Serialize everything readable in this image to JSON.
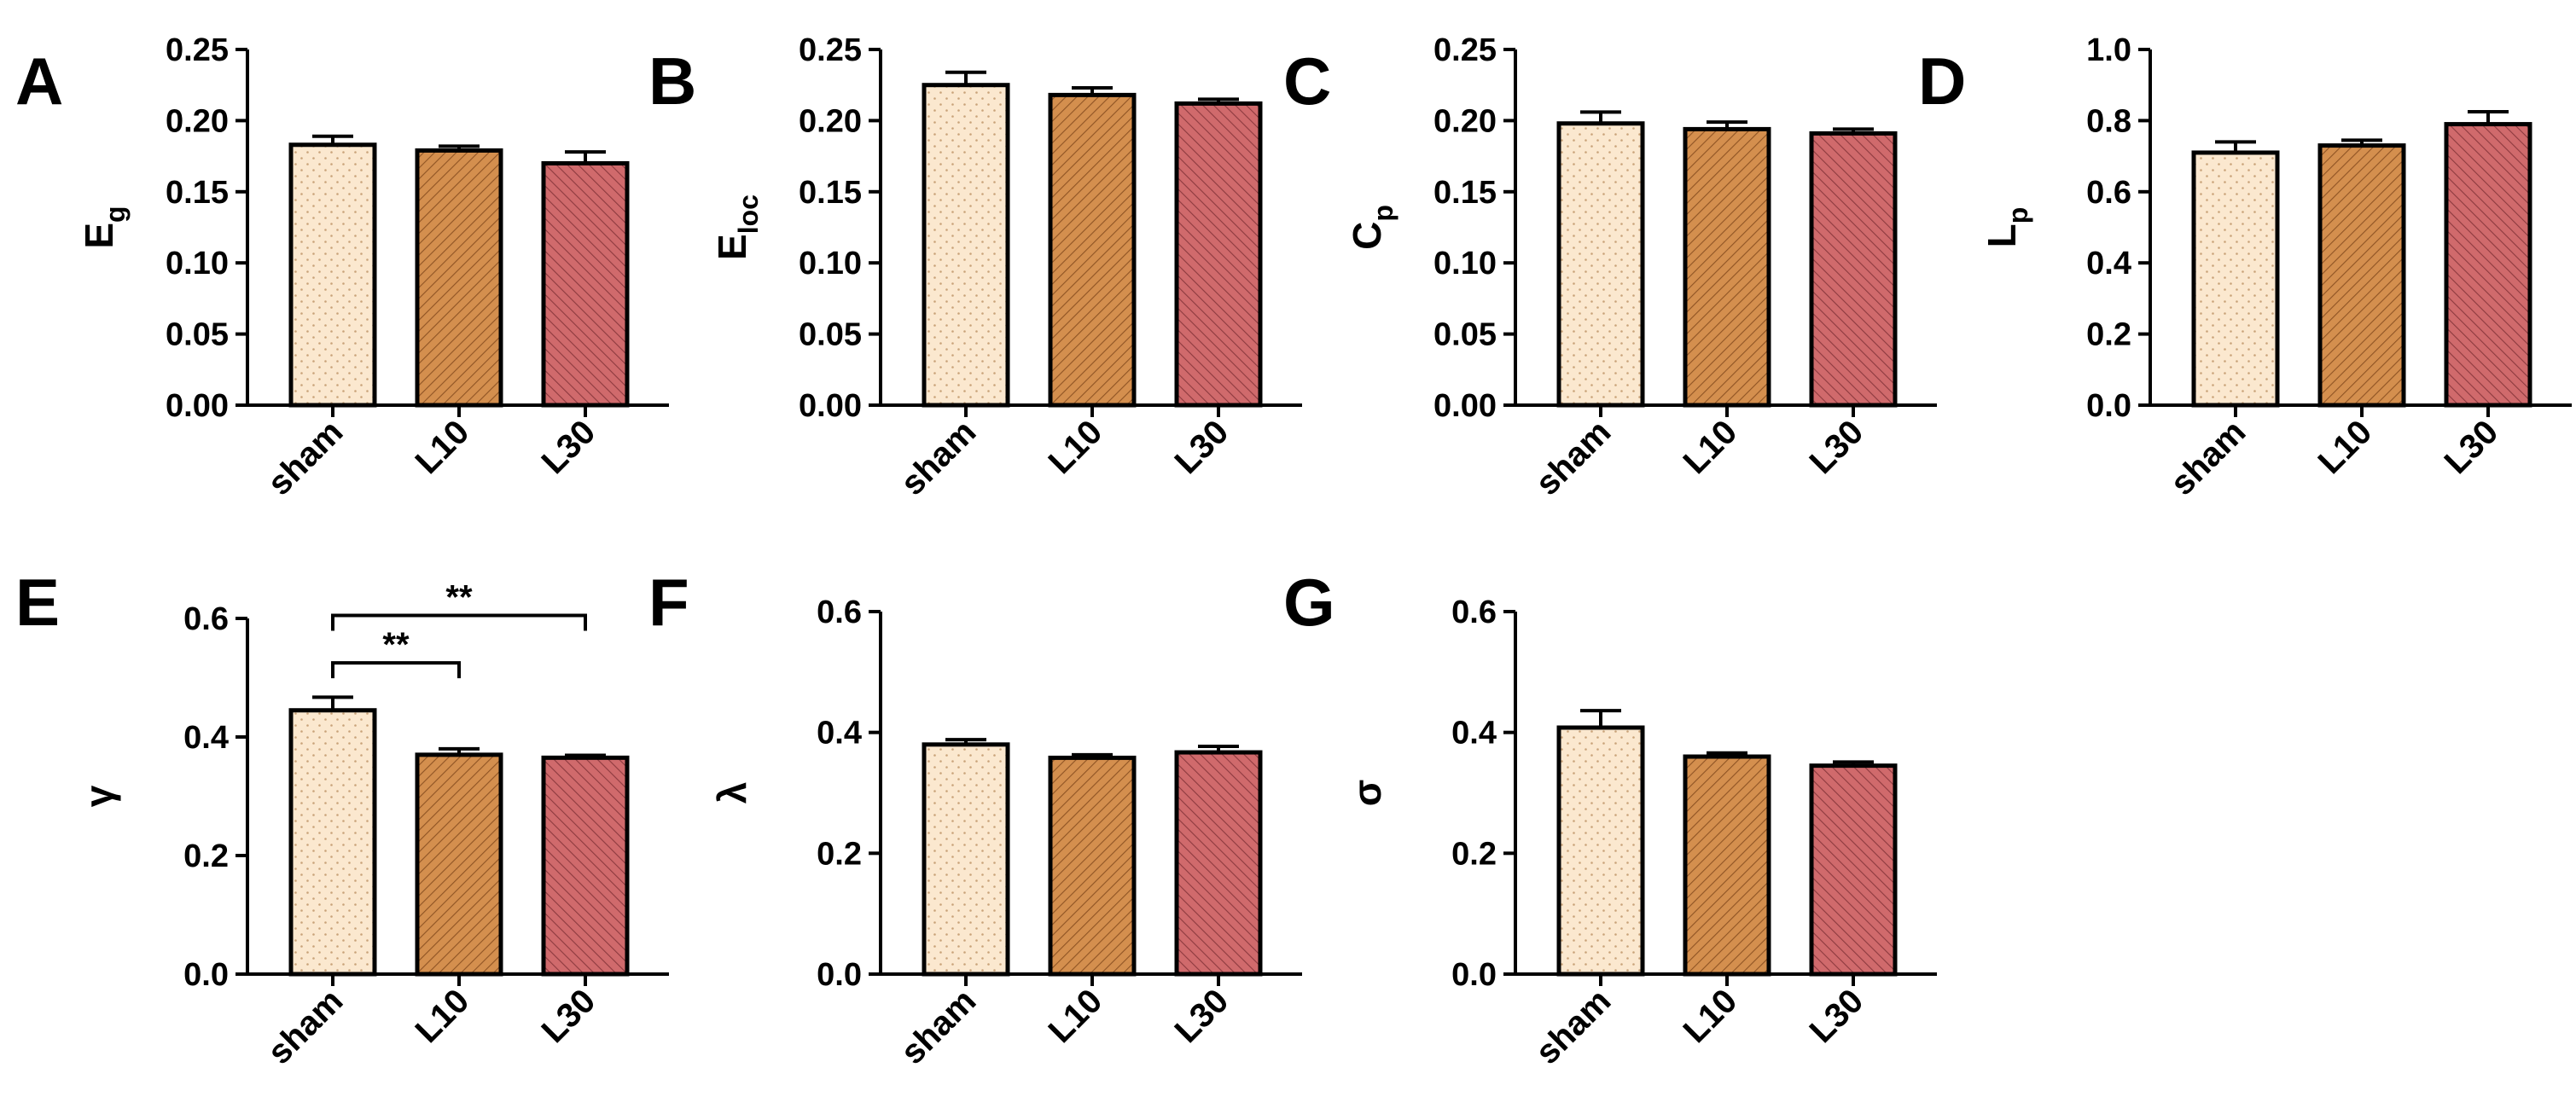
{
  "figure": {
    "categories": [
      "sham",
      "L10",
      "L30"
    ],
    "colors": {
      "sham": "#fbe8cf",
      "L10": "#d48f4e",
      "L30": "#d06a6c",
      "axis": "#000000"
    }
  },
  "chart_data": [
    {
      "panel": "A",
      "type": "bar",
      "ylabel": {
        "main": "E",
        "sub": "g"
      },
      "categories": [
        "sham",
        "L10",
        "L30"
      ],
      "values": [
        0.183,
        0.179,
        0.17
      ],
      "errors": [
        0.006,
        0.003,
        0.008
      ],
      "ylim": [
        0,
        0.25
      ],
      "yticks": [
        "0.00",
        "0.05",
        "0.10",
        "0.15",
        "0.20",
        "0.25"
      ],
      "significance": []
    },
    {
      "panel": "B",
      "type": "bar",
      "ylabel": {
        "main": "E",
        "sub": "loc"
      },
      "categories": [
        "sham",
        "L10",
        "L30"
      ],
      "values": [
        0.225,
        0.218,
        0.212
      ],
      "errors": [
        0.009,
        0.005,
        0.003
      ],
      "ylim": [
        0,
        0.25
      ],
      "yticks": [
        "0.00",
        "0.05",
        "0.10",
        "0.15",
        "0.20",
        "0.25"
      ],
      "significance": []
    },
    {
      "panel": "C",
      "type": "bar",
      "ylabel": {
        "main": "C",
        "sub": "p"
      },
      "categories": [
        "sham",
        "L10",
        "L30"
      ],
      "values": [
        0.198,
        0.194,
        0.191
      ],
      "errors": [
        0.008,
        0.005,
        0.003
      ],
      "ylim": [
        0,
        0.25
      ],
      "yticks": [
        "0.00",
        "0.05",
        "0.10",
        "0.15",
        "0.20",
        "0.25"
      ],
      "significance": []
    },
    {
      "panel": "D",
      "type": "bar",
      "ylabel": {
        "main": "L",
        "sub": "p"
      },
      "categories": [
        "sham",
        "L10",
        "L30"
      ],
      "values": [
        0.71,
        0.73,
        0.79
      ],
      "errors": [
        0.03,
        0.015,
        0.035
      ],
      "ylim": [
        0,
        1.0
      ],
      "yticks": [
        "0.0",
        "0.2",
        "0.4",
        "0.6",
        "0.8",
        "1.0"
      ],
      "significance": []
    },
    {
      "panel": "E",
      "type": "bar",
      "ylabel": {
        "main": "γ",
        "sub": ""
      },
      "categories": [
        "sham",
        "L10",
        "L30"
      ],
      "values": [
        0.445,
        0.37,
        0.365
      ],
      "errors": [
        0.022,
        0.01,
        0.004
      ],
      "ylim": [
        0,
        0.6
      ],
      "yticks": [
        "0.0",
        "0.2",
        "0.4",
        "0.6"
      ],
      "significance": [
        {
          "from": 0,
          "to": 1,
          "label": "**",
          "y": 0.525
        },
        {
          "from": 0,
          "to": 2,
          "label": "**",
          "y": 0.605
        }
      ]
    },
    {
      "panel": "F",
      "type": "bar",
      "ylabel": {
        "main": "λ",
        "sub": ""
      },
      "categories": [
        "sham",
        "L10",
        "L30"
      ],
      "values": [
        0.38,
        0.358,
        0.367
      ],
      "errors": [
        0.008,
        0.005,
        0.01
      ],
      "ylim": [
        0,
        0.6
      ],
      "yticks": [
        "0.0",
        "0.2",
        "0.4",
        "0.6"
      ],
      "significance": []
    },
    {
      "panel": "G",
      "type": "bar",
      "ylabel": {
        "main": "σ",
        "sub": ""
      },
      "categories": [
        "sham",
        "L10",
        "L30"
      ],
      "values": [
        0.408,
        0.36,
        0.345
      ],
      "errors": [
        0.028,
        0.006,
        0.006
      ],
      "ylim": [
        0,
        0.6
      ],
      "yticks": [
        "0.0",
        "0.2",
        "0.4",
        "0.6"
      ],
      "significance": []
    }
  ]
}
